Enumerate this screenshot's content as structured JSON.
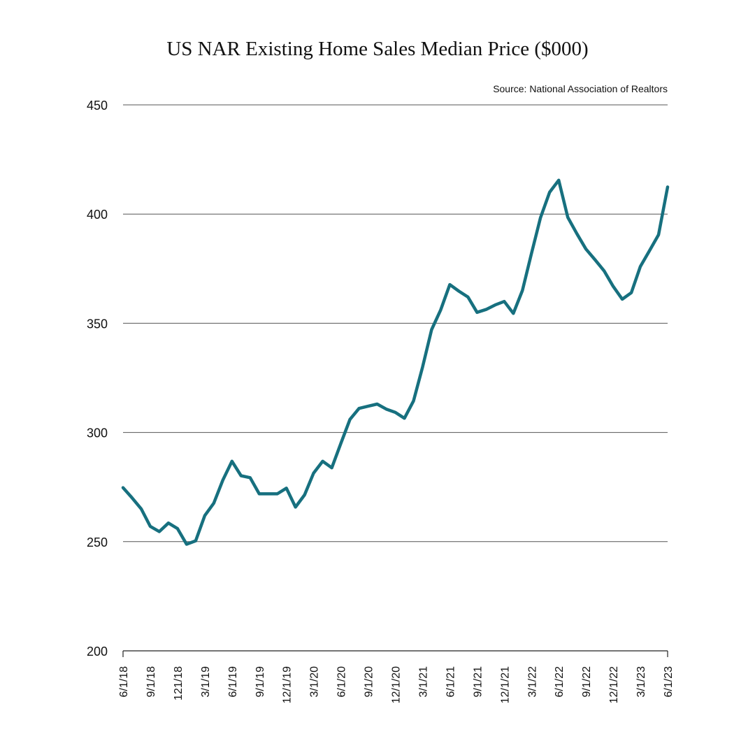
{
  "chart_data": {
    "type": "line",
    "title": "US NAR Existing Home Sales Median Price ($000)",
    "source": "Source: National Association of Realtors",
    "xlabel": "",
    "ylabel": "",
    "ylim": [
      200,
      450
    ],
    "yticks": [
      200,
      250,
      300,
      350,
      400,
      450
    ],
    "grid": true,
    "line_color": "#17707f",
    "xtick_labels": [
      "6/1/18",
      "9/1/18",
      "121/18",
      "3/1/19",
      "6/1/19",
      "9/1/19",
      "12/1/19",
      "3/1/20",
      "6/1/20",
      "9/1/20",
      "12/1/20",
      "3/1/21",
      "6/1/21",
      "9/1/21",
      "12/1/21",
      "3/1/22",
      "6/1/22",
      "9/1/22",
      "12/1/22",
      "3/1/23",
      "6/1/23"
    ],
    "x": [
      "6/1/18",
      "7/1/18",
      "8/1/18",
      "9/1/18",
      "10/1/18",
      "11/1/18",
      "12/1/18",
      "1/1/19",
      "2/1/19",
      "3/1/19",
      "4/1/19",
      "5/1/19",
      "6/1/19",
      "7/1/19",
      "8/1/19",
      "9/1/19",
      "10/1/19",
      "11/1/19",
      "12/1/19",
      "1/1/20",
      "2/1/20",
      "3/1/20",
      "4/1/20",
      "5/1/20",
      "6/1/20",
      "7/1/20",
      "8/1/20",
      "9/1/20",
      "10/1/20",
      "11/1/20",
      "12/1/20",
      "1/1/21",
      "2/1/21",
      "3/1/21",
      "4/1/21",
      "5/1/21",
      "6/1/21",
      "7/1/21",
      "8/1/21",
      "9/1/21",
      "10/1/21",
      "11/1/21",
      "12/1/21",
      "1/1/22",
      "2/1/22",
      "3/1/22",
      "4/1/22",
      "5/1/22",
      "6/1/22",
      "7/1/22",
      "8/1/22",
      "9/1/22",
      "10/1/22",
      "11/1/22",
      "12/1/22",
      "1/1/23",
      "2/1/23",
      "3/1/23",
      "4/1/23",
      "5/1/23",
      "6/1/23"
    ],
    "series": [
      {
        "values": [
          274.7,
          270.0,
          265.0,
          257.0,
          254.6,
          258.5,
          256.0,
          248.8,
          250.4,
          261.9,
          267.6,
          278.2,
          286.8,
          280.2,
          279.3,
          271.9,
          271.9,
          271.9,
          274.5,
          265.8,
          271.4,
          281.4,
          286.8,
          283.8,
          295.0,
          306.0,
          311.0,
          312.0,
          313.0,
          310.7,
          309.2,
          306.5,
          314.4,
          330.0,
          347.1,
          356.1,
          367.7,
          364.7,
          362.0,
          355.0,
          356.3,
          358.4,
          360.0,
          354.5,
          365.0,
          382.0,
          398.4,
          410.0,
          415.5,
          398.5,
          391.0,
          384.0,
          379.1,
          374.0,
          366.9,
          361.0,
          364.0,
          376.0,
          383.2,
          390.5,
          412.4
        ]
      }
    ]
  }
}
